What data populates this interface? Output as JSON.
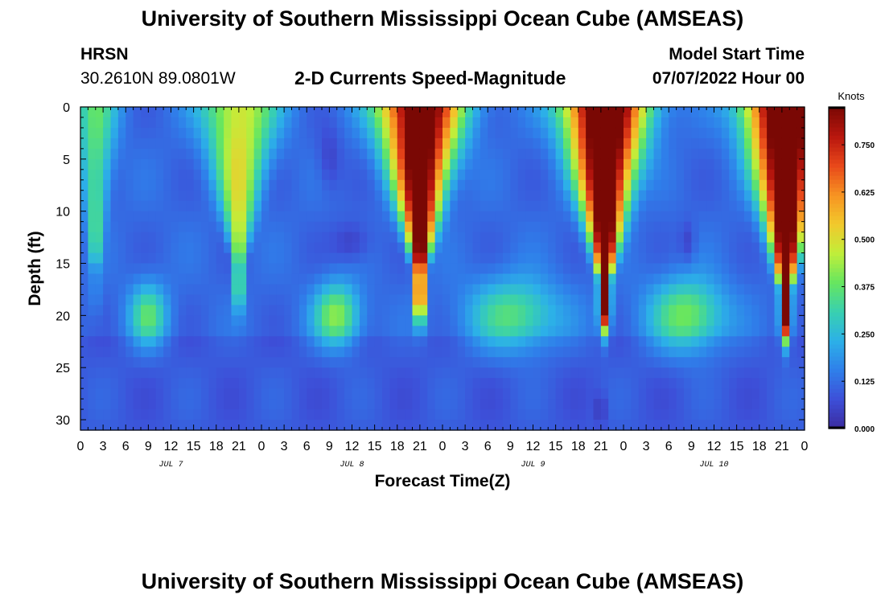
{
  "page": {
    "title": "University of Southern Mississippi Ocean Cube (AMSEAS)",
    "station": "HRSN",
    "coords": "30.2610N  89.0801W",
    "subtitle": "2-D Currents Speed-Magnitude",
    "start_label": "Model Start Time",
    "start_value": "07/07/2022 Hour 00",
    "footer_title": "University of Southern Mississippi Ocean Cube (AMSEAS)"
  },
  "colors": {
    "scale": [
      "#3b2a9e",
      "#3d4fd8",
      "#2f7fea",
      "#2cb0e8",
      "#38d0b0",
      "#66e660",
      "#c0ee3a",
      "#f2c92c",
      "#f79322",
      "#e8481a",
      "#b8160e",
      "#7a0804"
    ]
  },
  "chart_data": {
    "type": "heatmap",
    "title": "2-D Currents Speed-Magnitude",
    "xlabel": "Forecast Time(Z)",
    "ylabel": "Depth (ft)",
    "xlim": [
      0,
      96
    ],
    "ylim": [
      0,
      31
    ],
    "x_ticks": [
      0,
      3,
      6,
      9,
      12,
      15,
      18,
      21,
      24,
      27,
      30,
      33,
      36,
      39,
      42,
      45,
      48,
      51,
      54,
      57,
      60,
      63,
      66,
      69,
      72,
      75,
      78,
      81,
      84,
      87,
      90,
      93,
      96
    ],
    "x_tick_labels": [
      "0",
      "3",
      "6",
      "9",
      "12",
      "15",
      "18",
      "21",
      "0",
      "3",
      "6",
      "9",
      "12",
      "15",
      "18",
      "21",
      "0",
      "3",
      "6",
      "9",
      "12",
      "15",
      "18",
      "21",
      "0",
      "3",
      "6",
      "9",
      "12",
      "15",
      "18",
      "21",
      "0"
    ],
    "day_labels": [
      {
        "hour": 12,
        "label": "JUL 7"
      },
      {
        "hour": 36,
        "label": "JUL 8"
      },
      {
        "hour": 60,
        "label": "JUL 9"
      },
      {
        "hour": 84,
        "label": "JUL 10"
      }
    ],
    "y_ticks": [
      0,
      5,
      10,
      15,
      20,
      25,
      30
    ],
    "y_tick_labels": [
      "0",
      "5",
      "10",
      "15",
      "20",
      "25",
      "30"
    ],
    "colorbar": {
      "label": "Knots",
      "min": 0.0,
      "max": 0.85,
      "ticks": [
        0.0,
        0.125,
        0.25,
        0.375,
        0.5,
        0.625,
        0.75
      ],
      "tick_labels": [
        "0.000",
        "0.125",
        "0.250",
        "0.375",
        "0.500",
        "0.625",
        "0.750"
      ]
    },
    "field_features": [
      {
        "kind": "surface_jet",
        "center_hour": 2,
        "width_hours": 3,
        "depth_ft": 18,
        "peak_knots": 0.36
      },
      {
        "kind": "surface_jet",
        "center_hour": 21,
        "width_hours": 5,
        "depth_ft": 17,
        "peak_knots": 0.5
      },
      {
        "kind": "surface_jet",
        "center_hour": 45,
        "width_hours": 5.5,
        "depth_ft": 18,
        "peak_knots": 0.95
      },
      {
        "kind": "surface_jet",
        "center_hour": 69.5,
        "width_hours": 5.5,
        "depth_ft": 19,
        "peak_knots": 1.0
      },
      {
        "kind": "surface_jet",
        "center_hour": 93.5,
        "width_hours": 5.5,
        "depth_ft": 20,
        "peak_knots": 1.0
      },
      {
        "kind": "subsurface_core",
        "center_hour": 9,
        "center_depth_ft": 20,
        "width_hours": 2.5,
        "half_depth_ft": 3,
        "peak_knots": 0.36
      },
      {
        "kind": "subsurface_core",
        "center_hour": 34,
        "center_depth_ft": 20,
        "width_hours": 3,
        "half_depth_ft": 3,
        "peak_knots": 0.42
      },
      {
        "kind": "subsurface_core",
        "center_hour": 57.5,
        "center_depth_ft": 20,
        "width_hours": 6,
        "half_depth_ft": 3.5,
        "peak_knots": 0.36
      },
      {
        "kind": "subsurface_core",
        "center_hour": 80.5,
        "center_depth_ft": 20,
        "width_hours": 5,
        "half_depth_ft": 3.5,
        "peak_knots": 0.4
      },
      {
        "kind": "calm_patch",
        "center_hour": 33,
        "center_depth_ft": 5,
        "width_hours": 1.5,
        "half_depth_ft": 3,
        "min_knots": 0.05
      },
      {
        "kind": "calm_patch",
        "center_hour": 36,
        "center_depth_ft": 13,
        "width_hours": 2.5,
        "half_depth_ft": 2,
        "min_knots": 0.04
      },
      {
        "kind": "calm_patch",
        "center_hour": 80.5,
        "center_depth_ft": 13,
        "width_hours": 1,
        "half_depth_ft": 2,
        "min_knots": 0.05
      },
      {
        "kind": "calm_patch",
        "center_hour": 69,
        "center_depth_ft": 29,
        "width_hours": 0.5,
        "half_depth_ft": 1.5,
        "min_knots": 0.0
      }
    ]
  }
}
